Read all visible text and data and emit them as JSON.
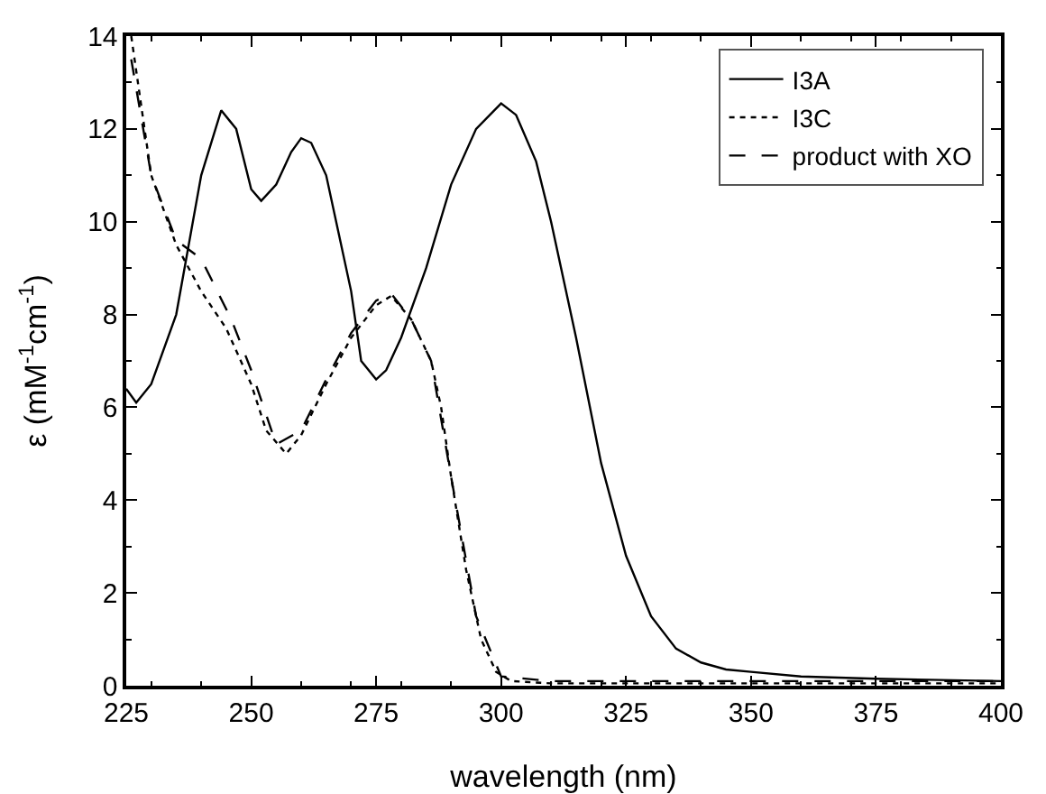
{
  "chart_data": {
    "type": "line",
    "xlabel": "wavelength (nm)",
    "ylabel": "ε (mM$^{-1}$cm$^{-1}$)",
    "xlim": [
      225,
      400
    ],
    "xticks": [
      225,
      250,
      275,
      300,
      325,
      350,
      375,
      400
    ],
    "ylim": [
      0,
      14
    ],
    "yticks": [
      0,
      2,
      4,
      6,
      8,
      10,
      12,
      14
    ],
    "grid": false,
    "legend": "top right",
    "marker": "none",
    "series": [
      {
        "name": "I3A",
        "color": "#000000",
        "line_style": "solid",
        "x": [
          225,
          227,
          230,
          235,
          240,
          244,
          247,
          250,
          252,
          255,
          258,
          260,
          262,
          265,
          270,
          272,
          275,
          277,
          280,
          285,
          290,
          295,
          300,
          303,
          307,
          310,
          315,
          320,
          325,
          330,
          335,
          340,
          345,
          350,
          360,
          375,
          400
        ],
        "values": [
          6.4,
          6.1,
          6.5,
          8.0,
          11.0,
          12.4,
          12.0,
          10.7,
          10.45,
          10.8,
          11.5,
          11.8,
          11.7,
          11.0,
          8.5,
          7.0,
          6.6,
          6.8,
          7.5,
          9.0,
          10.8,
          12.0,
          12.55,
          12.3,
          11.3,
          10.0,
          7.5,
          4.8,
          2.8,
          1.5,
          0.8,
          0.5,
          0.35,
          0.3,
          0.2,
          0.15,
          0.1
        ]
      },
      {
        "name": "I3C",
        "color": "#000000",
        "line_style": "dotted",
        "x": [
          226,
          228,
          230,
          235,
          240,
          245,
          250,
          253,
          257,
          260,
          265,
          270,
          275,
          278,
          282,
          286,
          288,
          290,
          293,
          296,
          299,
          302,
          310,
          400
        ],
        "values": [
          14,
          12.5,
          11,
          9.5,
          8.5,
          7.7,
          6.5,
          5.5,
          5.0,
          5.4,
          6.5,
          7.5,
          8.2,
          8.4,
          7.9,
          7.0,
          6.0,
          4.5,
          2.5,
          1.0,
          0.3,
          0.1,
          0.05,
          0.05
        ]
      },
      {
        "name": "product with XO",
        "color": "#000000",
        "line_style": "dashed",
        "x": [
          226,
          230,
          235,
          240,
          246,
          250,
          255,
          260,
          265,
          270,
          275,
          278,
          282,
          286,
          290,
          295,
          300,
          310,
          400
        ],
        "values": [
          13.5,
          11,
          9.6,
          9.2,
          7.9,
          6.8,
          5.2,
          5.5,
          6.6,
          7.6,
          8.3,
          8.45,
          7.9,
          7.0,
          4.5,
          1.5,
          0.2,
          0.1,
          0.1
        ]
      }
    ]
  }
}
